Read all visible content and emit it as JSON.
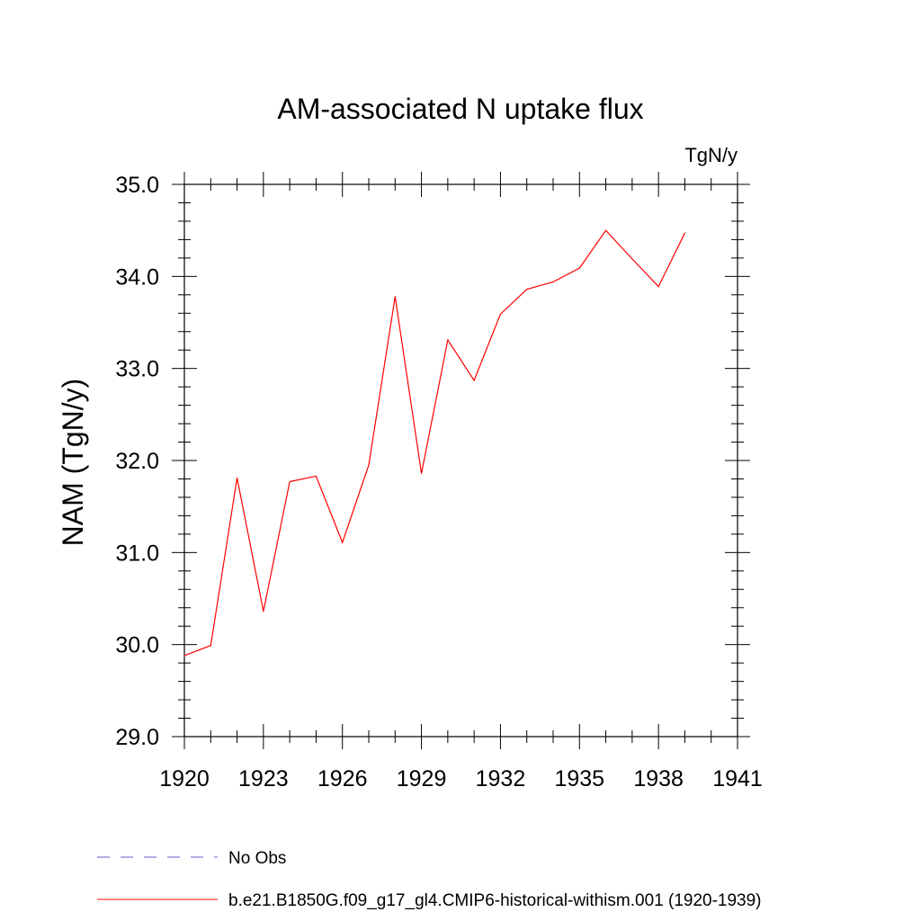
{
  "chart_data": {
    "type": "line",
    "title": "AM-associated N uptake flux",
    "units": "TgN/y",
    "xlabel": "",
    "ylabel": "NAM  (TgN/y)",
    "xlim": [
      1920,
      1941
    ],
    "ylim": [
      29.0,
      35.0
    ],
    "x_ticks": [
      1920,
      1923,
      1926,
      1929,
      1932,
      1935,
      1938,
      1941
    ],
    "x_tick_labels": [
      "1920",
      "1923",
      "1926",
      "1929",
      "1932",
      "1935",
      "1938",
      "1941"
    ],
    "y_ticks": [
      29.0,
      30.0,
      31.0,
      32.0,
      33.0,
      34.0,
      35.0
    ],
    "y_tick_labels": [
      "29.0",
      "30.0",
      "31.0",
      "32.0",
      "33.0",
      "34.0",
      "35.0"
    ],
    "grid": false,
    "legend_position": "bottom",
    "series": [
      {
        "name": "b.e21.B1850G.f09_g17_gl4.CMIP6-historical-withism.001 (1920-1939)",
        "color": "#ff0000",
        "style": "solid",
        "x": [
          1920,
          1921,
          1922,
          1923,
          1924,
          1925,
          1926,
          1927,
          1928,
          1929,
          1930,
          1931,
          1932,
          1933,
          1934,
          1935,
          1936,
          1937,
          1938,
          1939
        ],
        "values": [
          29.88,
          29.99,
          31.81,
          30.36,
          31.77,
          31.83,
          31.11,
          31.95,
          33.78,
          31.86,
          33.31,
          32.87,
          33.59,
          33.86,
          33.94,
          34.09,
          34.5,
          34.19,
          33.89,
          34.47
        ]
      }
    ],
    "legend": [
      {
        "label": "No Obs",
        "color": "#6a5acd",
        "style": "dashed"
      },
      {
        "label": "b.e21.B1850G.f09_g17_gl4.CMIP6-historical-withism.001 (1920-1939)",
        "color": "#ff0000",
        "style": "solid"
      }
    ]
  }
}
